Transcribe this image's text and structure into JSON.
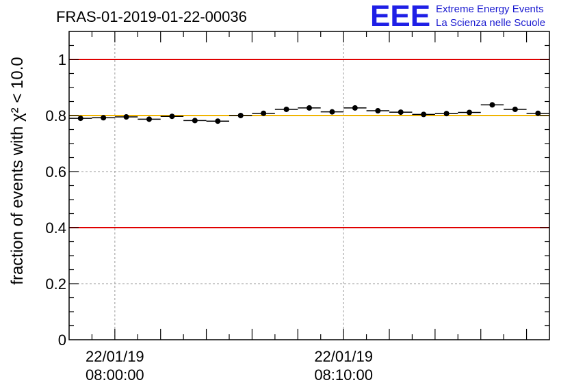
{
  "title": "FRAS-01-2019-01-22-00036",
  "logo": {
    "mark": "EEE",
    "line1": "Extreme Energy Events",
    "line2": "La Scienza nelle Scuole",
    "color": "#1f1fe6"
  },
  "chart_data": {
    "type": "scatter",
    "title": "FRAS-01-2019-01-22-00036",
    "ylabel": "fraction of events with χ² < 10.0",
    "xlabel": "",
    "ylim": [
      0,
      1.1
    ],
    "x_unit": "minutes after 22/01/19 07:57:20",
    "xlim": [
      0,
      21
    ],
    "x_ticks": [
      {
        "value": 2,
        "line1": "22/01/19",
        "line2": "08:00:00"
      },
      {
        "value": 12,
        "line1": "22/01/19",
        "line2": "08:10:00"
      }
    ],
    "y_ticks": [
      "0",
      "0.2",
      "0.4",
      "0.6",
      "0.8",
      "1"
    ],
    "y_tick_values": [
      0,
      0.2,
      0.4,
      0.6,
      0.8,
      1.0
    ],
    "grid": true,
    "reference_lines": [
      {
        "y": 1.0,
        "color": "#e00000"
      },
      {
        "y": 0.4,
        "color": "#e00000"
      },
      {
        "y": 0.8,
        "color": "#f0b400"
      }
    ],
    "points": [
      {
        "x": 0.5,
        "y": 0.79
      },
      {
        "x": 1.5,
        "y": 0.792
      },
      {
        "x": 2.5,
        "y": 0.795
      },
      {
        "x": 3.5,
        "y": 0.787
      },
      {
        "x": 4.5,
        "y": 0.797
      },
      {
        "x": 5.5,
        "y": 0.782
      },
      {
        "x": 6.5,
        "y": 0.78
      },
      {
        "x": 7.5,
        "y": 0.8
      },
      {
        "x": 8.5,
        "y": 0.808
      },
      {
        "x": 9.5,
        "y": 0.822
      },
      {
        "x": 10.5,
        "y": 0.827
      },
      {
        "x": 11.5,
        "y": 0.813
      },
      {
        "x": 12.5,
        "y": 0.827
      },
      {
        "x": 13.5,
        "y": 0.817
      },
      {
        "x": 14.5,
        "y": 0.812
      },
      {
        "x": 15.5,
        "y": 0.804
      },
      {
        "x": 16.5,
        "y": 0.807
      },
      {
        "x": 17.5,
        "y": 0.811
      },
      {
        "x": 18.5,
        "y": 0.838
      },
      {
        "x": 19.5,
        "y": 0.822
      },
      {
        "x": 20.5,
        "y": 0.808
      }
    ]
  }
}
